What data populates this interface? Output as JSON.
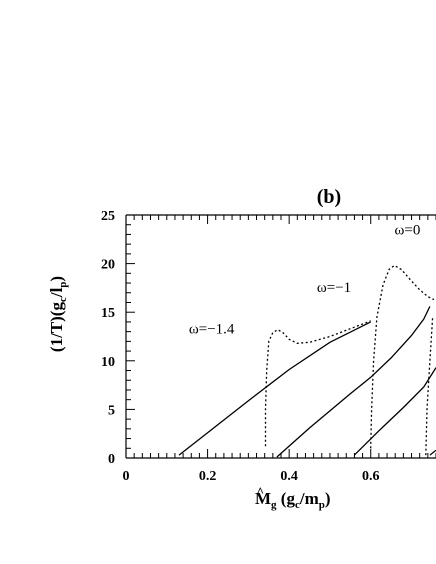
{
  "chart_data": {
    "type": "line",
    "title": "(b)",
    "xlabel": "M̂g (gc/mp)",
    "ylabel": "(1/T)(gc/lp)",
    "xlim": [
      0,
      0.76
    ],
    "ylim": [
      0,
      25
    ],
    "x_ticks": [
      0,
      0.2,
      0.4,
      0.6
    ],
    "x_tick_labels": [
      "0",
      "0.2",
      "0.4",
      "0.6"
    ],
    "y_ticks": [
      0,
      5,
      10,
      15,
      20,
      25
    ],
    "y_tick_labels": [
      "0",
      "5",
      "10",
      "15",
      "20",
      "25"
    ],
    "grid": false,
    "series": [
      {
        "style": "solid",
        "points": [
          [
            0.13,
            0.3
          ],
          [
            0.2,
            2.6
          ],
          [
            0.3,
            5.9
          ],
          [
            0.4,
            9.1
          ],
          [
            0.5,
            11.9
          ],
          [
            0.6,
            14.0
          ]
        ]
      },
      {
        "style": "dotted",
        "points": [
          [
            0.342,
            1.2
          ],
          [
            0.342,
            5.0
          ],
          [
            0.345,
            9.0
          ],
          [
            0.35,
            12.0
          ],
          [
            0.36,
            12.9
          ],
          [
            0.372,
            13.2
          ],
          [
            0.385,
            12.9
          ],
          [
            0.4,
            12.2
          ],
          [
            0.42,
            11.8
          ],
          [
            0.45,
            11.9
          ],
          [
            0.5,
            12.5
          ],
          [
            0.55,
            13.3
          ],
          [
            0.6,
            14.1
          ]
        ]
      },
      {
        "style": "solid",
        "points": [
          [
            0.37,
            0.1
          ],
          [
            0.45,
            3.1
          ],
          [
            0.55,
            6.6
          ],
          [
            0.6,
            8.3
          ],
          [
            0.65,
            10.3
          ],
          [
            0.7,
            12.6
          ],
          [
            0.73,
            14.3
          ],
          [
            0.745,
            15.6
          ]
        ]
      },
      {
        "style": "dotted",
        "points": [
          [
            0.6,
            1.0
          ],
          [
            0.602,
            5.0
          ],
          [
            0.607,
            10.0
          ],
          [
            0.615,
            14.5
          ],
          [
            0.63,
            17.8
          ],
          [
            0.645,
            19.4
          ],
          [
            0.658,
            19.8
          ],
          [
            0.675,
            19.4
          ],
          [
            0.7,
            18.2
          ],
          [
            0.72,
            17.3
          ],
          [
            0.74,
            16.6
          ],
          [
            0.755,
            16.3
          ]
        ]
      },
      {
        "style": "solid",
        "points": [
          [
            0.56,
            0.3
          ],
          [
            0.62,
            2.8
          ],
          [
            0.68,
            5.2
          ],
          [
            0.73,
            7.3
          ],
          [
            0.76,
            9.3
          ]
        ]
      },
      {
        "style": "dotted",
        "points": [
          [
            0.735,
            0.3
          ],
          [
            0.738,
            5.0
          ],
          [
            0.745,
            10.0
          ],
          [
            0.752,
            14.6
          ]
        ]
      },
      {
        "style": "solid",
        "points": [
          [
            0.745,
            0.3
          ],
          [
            0.76,
            0.8
          ]
        ]
      }
    ],
    "annotations": [
      {
        "text": "ω=−1.4",
        "x": 0.21,
        "y": 12.8
      },
      {
        "text": "ω=−1",
        "x": 0.51,
        "y": 17.1
      },
      {
        "text": "ω=0",
        "x": 0.69,
        "y": 23.0
      }
    ]
  }
}
